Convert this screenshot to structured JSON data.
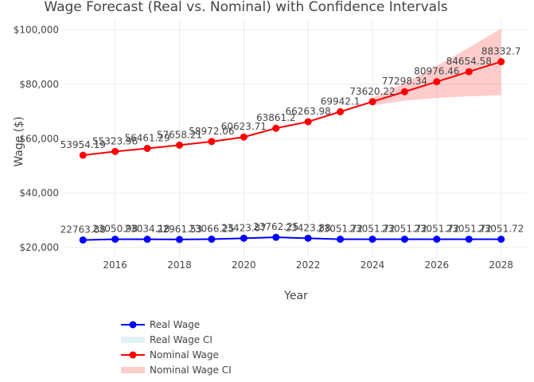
{
  "chart_data": {
    "type": "line",
    "title": "Wage Forecast (Real vs. Nominal) with Confidence Intervals",
    "xlabel": "Year",
    "ylabel": "Wage ($)",
    "xlim": [
      2014.4,
      2028.8
    ],
    "ylim": [
      16500,
      104000
    ],
    "x_ticks": [
      2016,
      2018,
      2020,
      2022,
      2024,
      2026,
      2028
    ],
    "y_ticks": [
      {
        "value": 20000,
        "label": "$20,000"
      },
      {
        "value": 40000,
        "label": "$40,000"
      },
      {
        "value": 60000,
        "label": "$60,000"
      },
      {
        "value": 80000,
        "label": "$80,000"
      },
      {
        "value": 100000,
        "label": "$100,000"
      }
    ],
    "grid": true,
    "legend_position": "bottom-left",
    "x": [
      2015,
      2016,
      2017,
      2018,
      2019,
      2020,
      2021,
      2022,
      2023,
      2024,
      2025,
      2026,
      2027,
      2028
    ],
    "series": [
      {
        "name": "Real Wage",
        "color": "#0000ff",
        "values": [
          22763.88,
          23050.98,
          23034.18,
          22961.53,
          23066.25,
          23423.87,
          23762.25,
          23423.88,
          23051.72,
          23051.72,
          23051.72,
          23051.72,
          23051.72,
          23051.72
        ],
        "labels": [
          "22763.88",
          "23050.98",
          "23034.18",
          "22961.53",
          "23066.25",
          "23423.87",
          "23762.25",
          "23423.88",
          "23051.72",
          "23051.72",
          "23051.72",
          "23051.72",
          "23051.72",
          "23051.72"
        ]
      },
      {
        "name": "Nominal Wage",
        "color": "#ff0000",
        "values": [
          53954.19,
          55323.96,
          56461.29,
          57658.21,
          58972.06,
          60623.71,
          63861.2,
          66263.98,
          69942.1,
          73620.22,
          77298.34,
          80976.46,
          84654.58,
          88332.7
        ],
        "labels": [
          "53954.19",
          "55323.96",
          "56461.29",
          "57658.21",
          "58972.06",
          "60623.71",
          "63861.2",
          "66263.98",
          "69942.1",
          "73620.22",
          "77298.34",
          "80976.46",
          "84654.58",
          "88332.7"
        ]
      }
    ],
    "confidence_bands": [
      {
        "name": "Real Wage CI",
        "color": "#add8e6",
        "x": [
          2024,
          2025,
          2026,
          2027,
          2028
        ],
        "lower": [
          23051.72,
          23051.72,
          23051.72,
          23051.72,
          23051.72
        ],
        "upper": [
          23051.72,
          23051.72,
          23051.72,
          23051.72,
          23051.72
        ]
      },
      {
        "name": "Nominal Wage CI",
        "color": "#ff0000",
        "x": [
          2024,
          2025,
          2026,
          2027,
          2028
        ],
        "lower": [
          72200,
          74000,
          75000,
          75600,
          76000
        ],
        "upper": [
          75000,
          80500,
          86800,
          93500,
          100500
        ]
      }
    ],
    "legend": [
      {
        "label": "Real Wage",
        "kind": "line",
        "color": "#0000ff"
      },
      {
        "label": "Real Wage CI",
        "kind": "band",
        "color": "#add8e6"
      },
      {
        "label": "Nominal Wage",
        "kind": "line",
        "color": "#ff0000"
      },
      {
        "label": "Nominal Wage CI",
        "kind": "band",
        "color": "#ff0000"
      }
    ]
  }
}
